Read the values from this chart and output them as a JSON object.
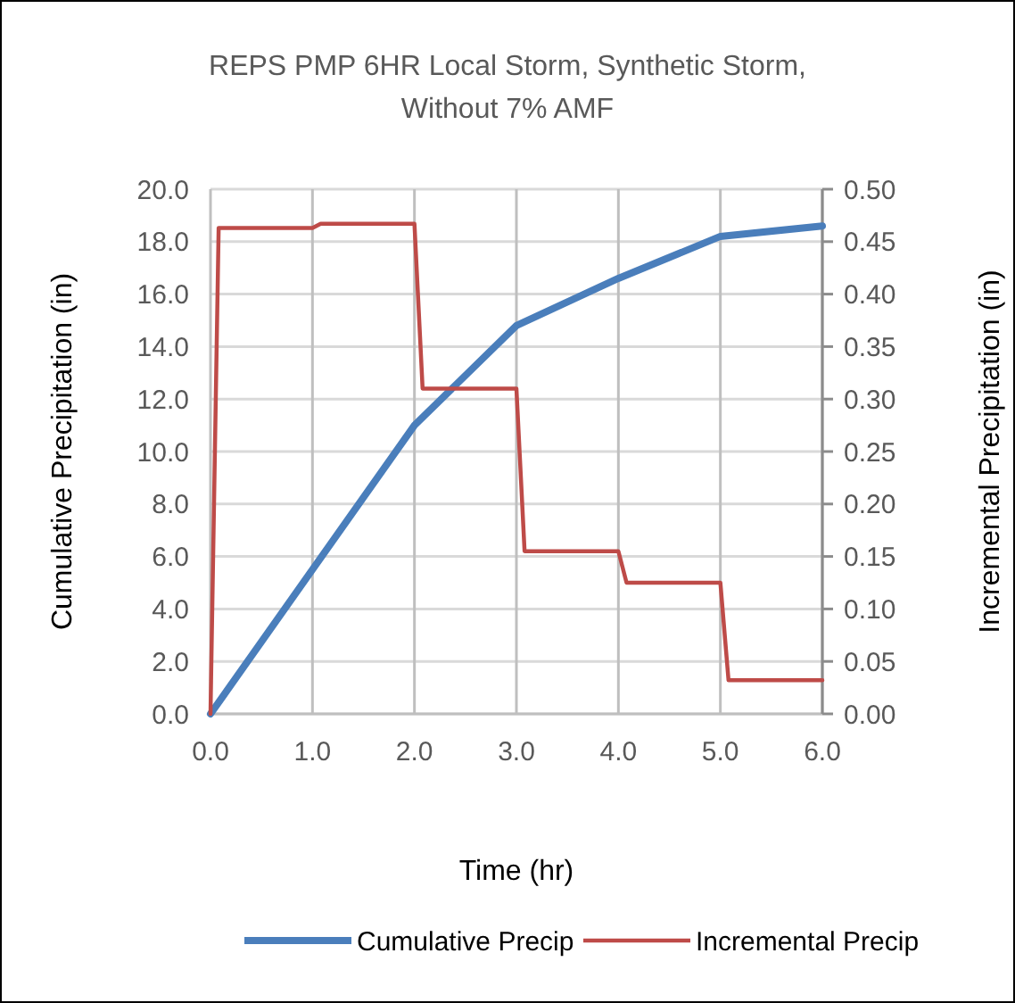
{
  "chart_data": {
    "type": "line",
    "title": "REPS PMP 6HR Local Storm, Synthetic Storm, Without 7% AMF",
    "xlabel": "Time (hr)",
    "ylabel": "Cumulative Precipitation (in)",
    "y2label": "Incremental Precipitation (in)",
    "xlim": [
      0,
      6
    ],
    "xticks": [
      {
        "value": 0,
        "label": "0.0"
      },
      {
        "value": 1,
        "label": "1.0"
      },
      {
        "value": 2,
        "label": "2.0"
      },
      {
        "value": 3,
        "label": "3.0"
      },
      {
        "value": 4,
        "label": "4.0"
      },
      {
        "value": 5,
        "label": "5.0"
      },
      {
        "value": 6,
        "label": "6.0"
      }
    ],
    "ylim": [
      0,
      20
    ],
    "yticks": [
      {
        "value": 0,
        "label": "0.0"
      },
      {
        "value": 2,
        "label": "2.0"
      },
      {
        "value": 4,
        "label": "4.0"
      },
      {
        "value": 6,
        "label": "6.0"
      },
      {
        "value": 8,
        "label": "8.0"
      },
      {
        "value": 10,
        "label": "10.0"
      },
      {
        "value": 12,
        "label": "12.0"
      },
      {
        "value": 14,
        "label": "14.0"
      },
      {
        "value": 16,
        "label": "16.0"
      },
      {
        "value": 18,
        "label": "18.0"
      },
      {
        "value": 20,
        "label": "20.0"
      }
    ],
    "y2lim": [
      0,
      0.5
    ],
    "y2ticks": [
      {
        "value": 0,
        "label": "0.00"
      },
      {
        "value": 0.05,
        "label": "0.05"
      },
      {
        "value": 0.1,
        "label": "0.10"
      },
      {
        "value": 0.15,
        "label": "0.15"
      },
      {
        "value": 0.2,
        "label": "0.20"
      },
      {
        "value": 0.25,
        "label": "0.25"
      },
      {
        "value": 0.3,
        "label": "0.30"
      },
      {
        "value": 0.35,
        "label": "0.35"
      },
      {
        "value": 0.4,
        "label": "0.40"
      },
      {
        "value": 0.45,
        "label": "0.45"
      },
      {
        "value": 0.5,
        "label": "0.50"
      }
    ],
    "grid": true,
    "legend": "bottom",
    "marker": "none",
    "line_style": "solid",
    "series": [
      {
        "name": "Cumulative Precip",
        "color": "#4a7ebb",
        "x": [
          0,
          1,
          2,
          3,
          4,
          5,
          6
        ],
        "values": [
          0,
          5.5,
          11.0,
          14.8,
          16.6,
          18.2,
          18.6
        ]
      },
      {
        "name": "Incremental Precip",
        "color": "#be4b48",
        "axis": "y2",
        "x": [
          0,
          0.08,
          1.0,
          1.08,
          2.0,
          2.08,
          3.0,
          3.08,
          4.0,
          4.08,
          5.0,
          5.08,
          6.0
        ],
        "values": [
          0,
          0.463,
          0.463,
          0.467,
          0.467,
          0.31,
          0.31,
          0.155,
          0.155,
          0.125,
          0.125,
          0.032,
          0.032
        ]
      }
    ]
  }
}
